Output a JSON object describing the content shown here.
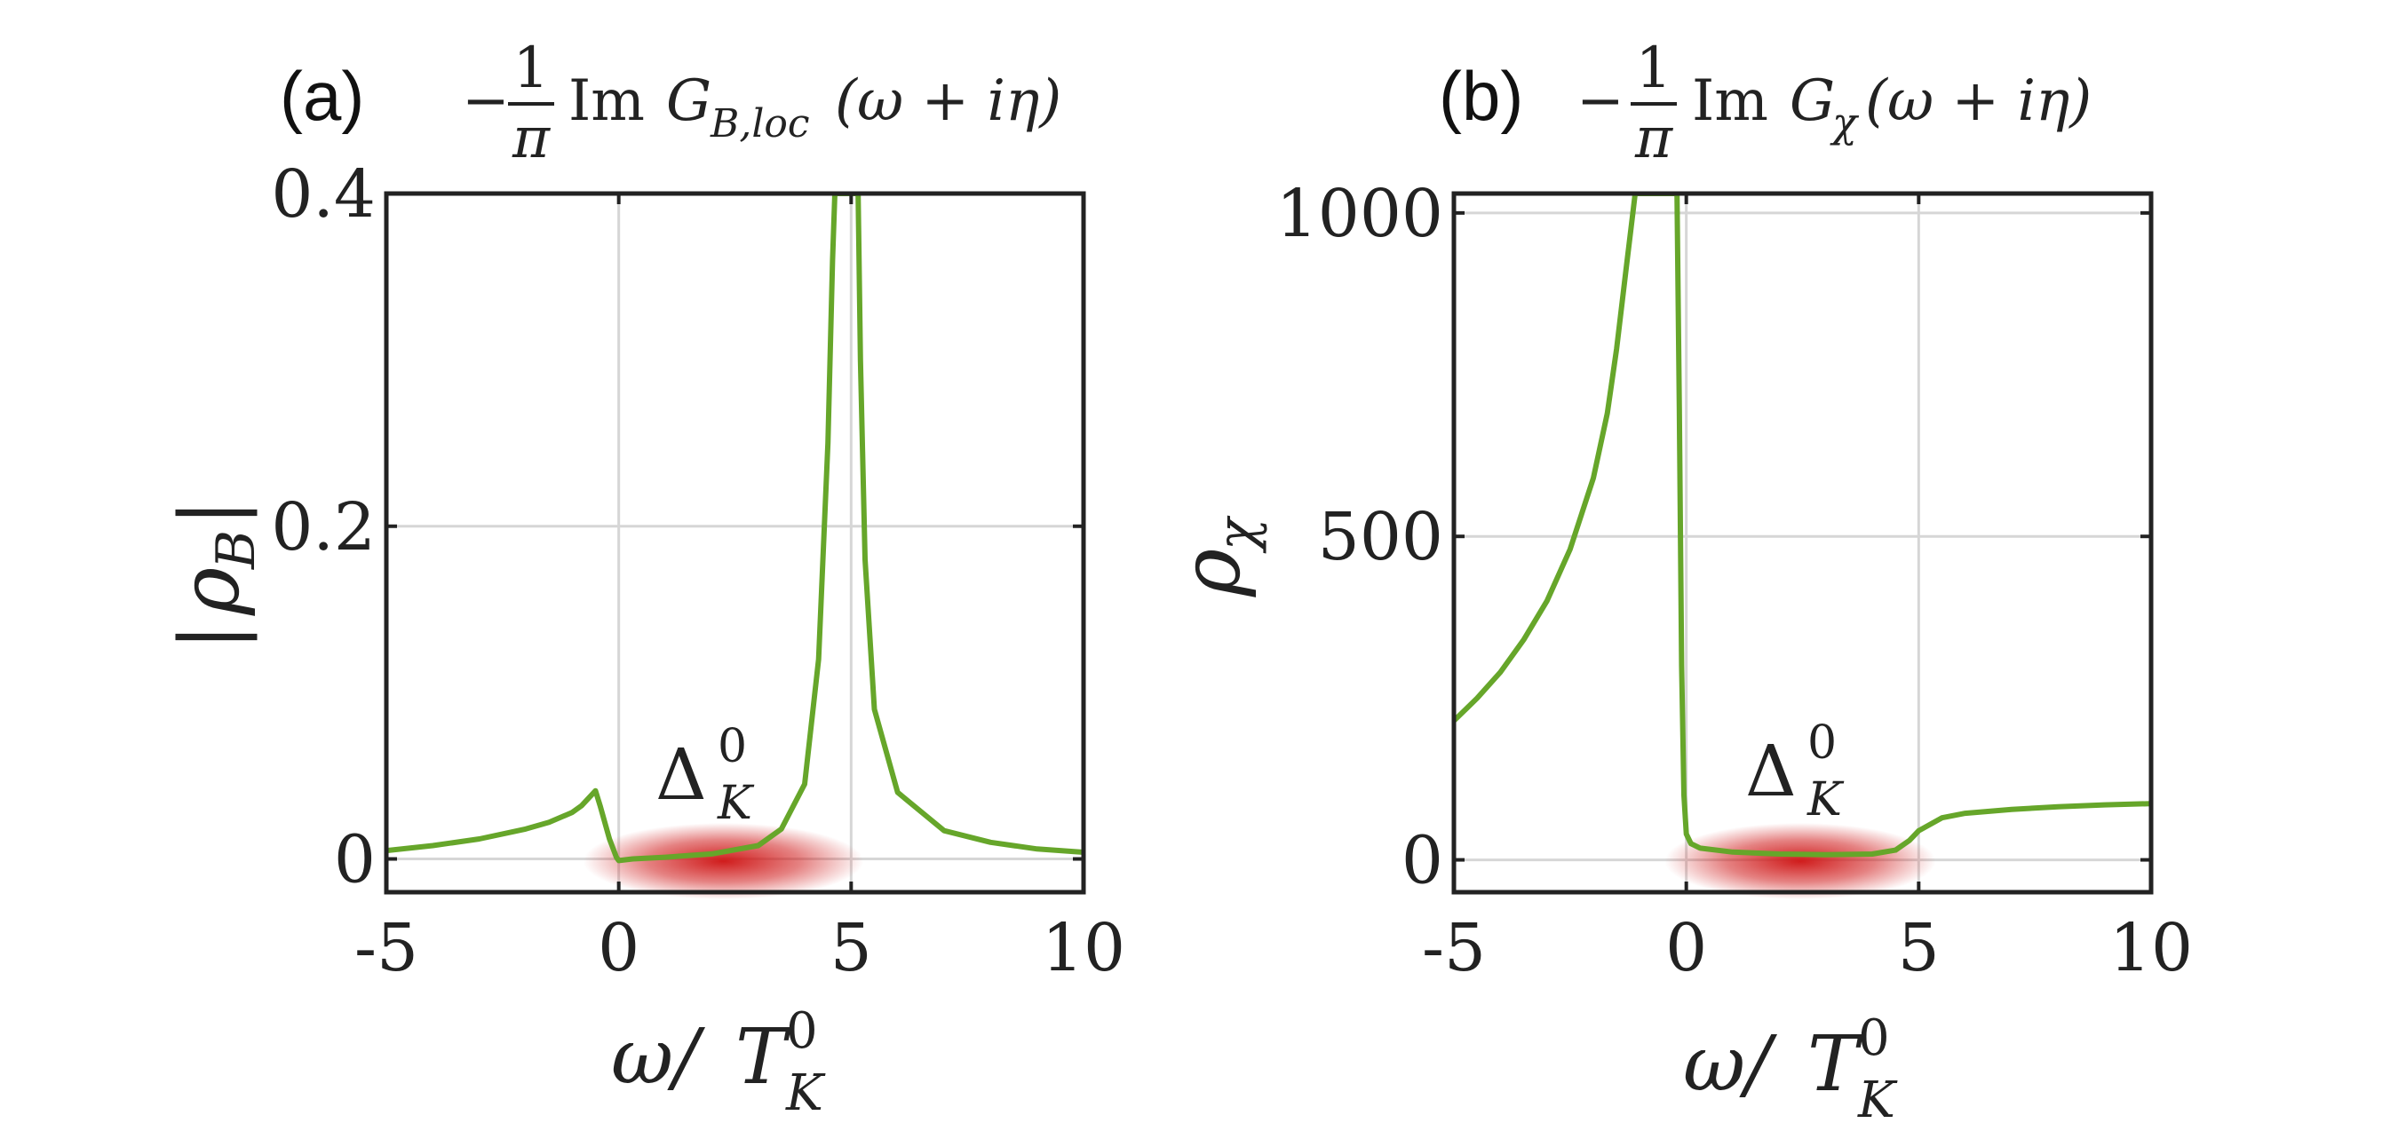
{
  "figure": {
    "colors": {
      "curve": "#66a62a",
      "gap_band": "#d01c1c",
      "axes": "#222222",
      "grid": "#d6d6d6"
    },
    "panels": [
      {
        "label": "(a)",
        "formula": {
          "minus": "−",
          "num": "1",
          "den": "π",
          "im": "Im",
          "G": "G",
          "sub": "B,loc",
          "arg": "(ω + iη)"
        },
        "ylabel": {
          "bar": "|",
          "sym": "ρ",
          "sub": "B"
        },
        "xlabel": {
          "omega": "ω/",
          "T": "T",
          "sup": "0",
          "sub": "K"
        },
        "band_label": {
          "sym": "Δ",
          "sup": "0",
          "sub": "K"
        }
      },
      {
        "label": "(b)",
        "formula": {
          "minus": "−",
          "num": "1",
          "den": "π",
          "im": "Im",
          "G": "G",
          "sub": "χ",
          "arg": "(ω + iη)"
        },
        "ylabel": {
          "bar": "",
          "sym": "ρ",
          "sub": "χ"
        },
        "xlabel": {
          "omega": "ω/",
          "T": "T",
          "sup": "0",
          "sub": "K"
        },
        "band_label": {
          "sym": "Δ",
          "sup": "0",
          "sub": "K"
        }
      }
    ]
  },
  "chart_data": [
    {
      "type": "line",
      "title": "(a) −(1/π) Im G_{B,loc}(ω + iη)",
      "xlabel": "ω/T_K^0",
      "ylabel": "|ρ_B|",
      "xlim": [
        -5,
        10
      ],
      "ylim": [
        -0.02,
        0.4
      ],
      "xticks": [
        -5,
        0,
        5,
        10
      ],
      "xtick_labels": [
        "-5",
        "0",
        "5",
        "10"
      ],
      "yticks": [
        0,
        0.2,
        0.4
      ],
      "ytick_labels": [
        "0",
        "0.2",
        "0.4"
      ],
      "grid": true,
      "gap_band": {
        "x_from": 0,
        "x_to": 4.5,
        "label": "Δ_K^0"
      },
      "series": [
        {
          "name": "|ρ_B|",
          "x": [
            -5,
            -4,
            -3,
            -2,
            -1.5,
            -1,
            -0.8,
            -0.6,
            -0.5,
            -0.4,
            -0.2,
            -0.05,
            0,
            0.3,
            1,
            2,
            3,
            3.5,
            4,
            4.3,
            4.5,
            4.6,
            4.65,
            5.15,
            5.2,
            5.3,
            5.5,
            6,
            7,
            8,
            9,
            10
          ],
          "y": [
            0.005,
            0.008,
            0.012,
            0.018,
            0.022,
            0.028,
            0.032,
            0.038,
            0.041,
            0.032,
            0.012,
            0.001,
            -0.001,
            0.0,
            0.001,
            0.003,
            0.008,
            0.018,
            0.045,
            0.12,
            0.25,
            0.36,
            0.4,
            0.4,
            0.3,
            0.18,
            0.09,
            0.04,
            0.017,
            0.01,
            0.006,
            0.004
          ]
        }
      ]
    },
    {
      "type": "line",
      "title": "(b) −(1/π) Im G_χ(ω + iη)",
      "xlabel": "ω/T_K^0",
      "ylabel": "ρ_χ",
      "xlim": [
        -5,
        10
      ],
      "ylim": [
        -50,
        1030
      ],
      "xticks": [
        -5,
        0,
        5,
        10
      ],
      "xtick_labels": [
        "-5",
        "0",
        "5",
        "10"
      ],
      "yticks": [
        0,
        500,
        1000
      ],
      "ytick_labels": [
        "0",
        "500",
        "1000"
      ],
      "grid": true,
      "gap_band": {
        "x_from": 0.3,
        "x_to": 4.6,
        "label": "Δ_K^0"
      },
      "series": [
        {
          "name": "ρ_χ",
          "x": [
            -5,
            -4.5,
            -4,
            -3.5,
            -3,
            -2.5,
            -2,
            -1.7,
            -1.5,
            -1.3,
            -1.15,
            -1.1,
            -0.2,
            -0.15,
            -0.1,
            -0.05,
            0,
            0.1,
            0.3,
            1,
            2,
            3,
            4,
            4.5,
            4.8,
            5,
            5.5,
            6,
            7,
            8,
            9,
            10
          ],
          "y": [
            215,
            250,
            290,
            340,
            400,
            480,
            590,
            690,
            790,
            910,
            1000,
            1030,
            1030,
            700,
            300,
            100,
            40,
            25,
            18,
            12,
            9,
            8,
            9,
            15,
            30,
            45,
            65,
            72,
            78,
            82,
            85,
            87
          ]
        }
      ]
    }
  ]
}
